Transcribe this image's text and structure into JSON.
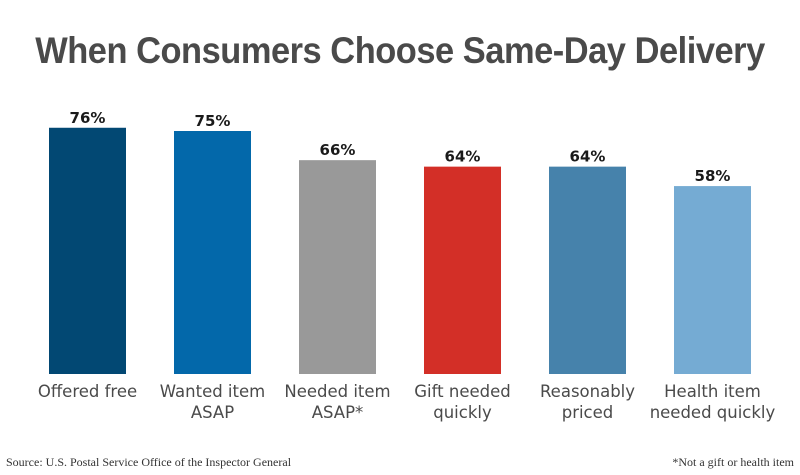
{
  "chart_data": {
    "type": "bar",
    "title": "When Consumers Choose Same-Day Delivery",
    "categories": [
      "Offered free",
      "Wanted item ASAP",
      "Needed item ASAP*",
      "Gift needed quickly",
      "Reasonably priced",
      "Health item needed quickly"
    ],
    "category_lines": [
      [
        "Offered free"
      ],
      [
        "Wanted item",
        "ASAP"
      ],
      [
        "Needed item",
        "ASAP*"
      ],
      [
        "Gift needed",
        "quickly"
      ],
      [
        "Reasonably",
        "priced"
      ],
      [
        "Health item",
        "needed quickly"
      ]
    ],
    "values": [
      76,
      75,
      66,
      64,
      64,
      58
    ],
    "value_labels": [
      "76%",
      "75%",
      "66%",
      "64%",
      "64%",
      "58%"
    ],
    "colors": [
      "#024873",
      "#0368aa",
      "#999999",
      "#d32f27",
      "#4682ab",
      "#75abd3"
    ],
    "xlabel": "",
    "ylabel": "",
    "unit": "%",
    "ylim": [
      0,
      100
    ],
    "grid": false,
    "legend": "none"
  },
  "source": "Source: U.S. Postal Service Office of the Inspector General",
  "note": "*Not a gift or health item"
}
